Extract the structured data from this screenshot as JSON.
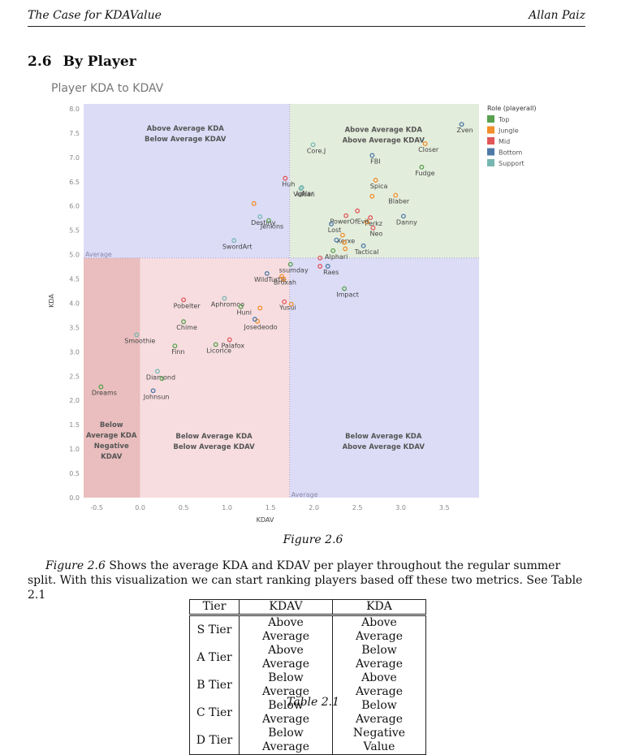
{
  "header": {
    "left": "The Case for KDAValue",
    "right": "Allan Paiz"
  },
  "section": {
    "number": "2.6",
    "title": "By Player"
  },
  "chart_title": "Player KDA to KDAV",
  "figure_caption": "Figure 2.6",
  "paragraph": {
    "ref": "Figure 2.6",
    "text": " Shows the average KDA and KDAV per player throughout the regular summer split. With this visualization we can start ranking players based off these two metrics. See Table 2.1"
  },
  "table": {
    "headers": [
      "Tier",
      "KDAV",
      "KDA"
    ],
    "rows": [
      [
        "S Tier",
        "Above Average",
        "Above Average"
      ],
      [
        "A Tier",
        "Above Average",
        "Below Average"
      ],
      [
        "B Tier",
        "Below Average",
        "Above Average"
      ],
      [
        "C Tier",
        "Below Average",
        "Below Average"
      ],
      [
        "D Tier",
        "Below Average",
        "Negative Value"
      ]
    ],
    "caption": "Table 2.1"
  },
  "chart_data": {
    "type": "scatter",
    "xlabel": "KDAV",
    "ylabel": "KDA",
    "xlim": [
      -0.65,
      3.9
    ],
    "ylim": [
      0.0,
      8.1
    ],
    "xticks": [
      -0.5,
      0.0,
      0.5,
      1.0,
      1.5,
      2.0,
      2.5,
      3.0,
      3.5
    ],
    "yticks": [
      0.0,
      0.5,
      1.0,
      1.5,
      2.0,
      2.5,
      3.0,
      3.5,
      4.0,
      4.5,
      5.0,
      5.5,
      6.0,
      6.5,
      7.0,
      7.5,
      8.0
    ],
    "reference_lines": {
      "x": 1.72,
      "y": 4.93,
      "x_label": "Average",
      "y_label": "Average"
    },
    "region_labels": [
      {
        "text": [
          "Above Average KDA",
          "Below Average KDAV"
        ],
        "x": 0.52,
        "y": 7.55,
        "color": "#555"
      },
      {
        "text": [
          "Above Average KDA",
          "Above Average KDAV"
        ],
        "x": 2.8,
        "y": 7.52,
        "color": "#555"
      },
      {
        "text": [
          "Below Average KDA",
          "Below Average KDAV"
        ],
        "x": 0.85,
        "y": 1.22,
        "color": "#555"
      },
      {
        "text": [
          "Below Average KDA",
          "Above Average KDAV"
        ],
        "x": 2.8,
        "y": 1.22,
        "color": "#555"
      },
      {
        "text": [
          "Below",
          "Average KDA",
          "Negative",
          "KDAV"
        ],
        "x": -0.33,
        "y": 1.45,
        "color": "#555"
      }
    ],
    "legend": {
      "title": "Role (playerall)",
      "position": "right",
      "items": [
        {
          "name": "Top",
          "color": "#59a14f"
        },
        {
          "name": "Jungle",
          "color": "#f28e2b"
        },
        {
          "name": "Mid",
          "color": "#e15759"
        },
        {
          "name": "Bottom",
          "color": "#4e79a7"
        },
        {
          "name": "Support",
          "color": "#76b7b2"
        }
      ]
    },
    "points": [
      {
        "label": "Zven",
        "x": 3.7,
        "y": 7.68,
        "role": "Bottom"
      },
      {
        "label": "Closer",
        "x": 3.28,
        "y": 7.28,
        "role": "Jungle"
      },
      {
        "label": "Core.J",
        "x": 1.99,
        "y": 7.26,
        "role": "Support"
      },
      {
        "label": "FBI",
        "x": 2.67,
        "y": 7.04,
        "role": "Bottom"
      },
      {
        "label": "Fudge",
        "x": 3.24,
        "y": 6.8,
        "role": "Top"
      },
      {
        "label": "Huh",
        "x": 1.67,
        "y": 6.57,
        "role": "Mid"
      },
      {
        "label": "IgNar",
        "x": 1.86,
        "y": 6.38,
        "role": "Support"
      },
      {
        "label": "Vulcan",
        "x": 1.85,
        "y": 6.36,
        "role": "Support"
      },
      {
        "label": "Spica",
        "x": 2.71,
        "y": 6.53,
        "role": "Jungle"
      },
      {
        "label": "",
        "x": 2.67,
        "y": 6.2,
        "role": "Jungle"
      },
      {
        "label": "Blaber",
        "x": 2.94,
        "y": 6.22,
        "role": "Jungle"
      },
      {
        "label": "",
        "x": 1.31,
        "y": 6.05,
        "role": "Jungle"
      },
      {
        "label": "Perkz",
        "x": 2.65,
        "y": 5.76,
        "role": "Mid"
      },
      {
        "label": "",
        "x": 2.61,
        "y": 5.67,
        "role": "Jungle"
      },
      {
        "label": "Destiny",
        "x": 1.38,
        "y": 5.78,
        "role": "Support"
      },
      {
        "label": "Jenkins",
        "x": 1.48,
        "y": 5.7,
        "role": "Top"
      },
      {
        "label": "PowerOfEvil",
        "x": 2.37,
        "y": 5.8,
        "role": "Mid"
      },
      {
        "label": "",
        "x": 2.5,
        "y": 5.9,
        "role": "Mid"
      },
      {
        "label": "Neo",
        "x": 2.68,
        "y": 5.55,
        "role": "Mid"
      },
      {
        "label": "Danny",
        "x": 3.03,
        "y": 5.79,
        "role": "Bottom"
      },
      {
        "label": "Lost",
        "x": 2.2,
        "y": 5.63,
        "role": "Bottom"
      },
      {
        "label": "Xerxe",
        "x": 2.33,
        "y": 5.4,
        "role": "Jungle"
      },
      {
        "label": "",
        "x": 2.26,
        "y": 5.3,
        "role": "Bottom"
      },
      {
        "label": "",
        "x": 2.35,
        "y": 5.25,
        "role": "Jungle"
      },
      {
        "label": "SwordArt",
        "x": 1.08,
        "y": 5.29,
        "role": "Support"
      },
      {
        "label": "Tactical",
        "x": 2.57,
        "y": 5.18,
        "role": "Bottom"
      },
      {
        "label": "Alphari",
        "x": 2.22,
        "y": 5.08,
        "role": "Top"
      },
      {
        "label": "",
        "x": 2.36,
        "y": 5.12,
        "role": "Jungle"
      },
      {
        "label": "",
        "x": 2.07,
        "y": 4.93,
        "role": "Mid"
      },
      {
        "label": "ssumday",
        "x": 1.73,
        "y": 4.8,
        "role": "Top"
      },
      {
        "label": "",
        "x": 2.07,
        "y": 4.76,
        "role": "Mid"
      },
      {
        "label": "Raes",
        "x": 2.16,
        "y": 4.76,
        "role": "Bottom"
      },
      {
        "label": "WildTurtle",
        "x": 1.46,
        "y": 4.61,
        "role": "Bottom"
      },
      {
        "label": "Broxah",
        "x": 1.63,
        "y": 4.55,
        "role": "Jungle"
      },
      {
        "label": "",
        "x": 1.65,
        "y": 4.5,
        "role": "Jungle"
      },
      {
        "label": "Impact",
        "x": 2.35,
        "y": 4.3,
        "role": "Top"
      },
      {
        "label": "Aphromoo",
        "x": 0.97,
        "y": 4.1,
        "role": "Support"
      },
      {
        "label": "Yusui",
        "x": 1.66,
        "y": 4.03,
        "role": "Mid"
      },
      {
        "label": "",
        "x": 1.74,
        "y": 3.98,
        "role": "Jungle"
      },
      {
        "label": "Pobelter",
        "x": 0.5,
        "y": 4.07,
        "role": "Mid"
      },
      {
        "label": "Huni",
        "x": 1.16,
        "y": 3.93,
        "role": "Top"
      },
      {
        "label": "",
        "x": 1.38,
        "y": 3.9,
        "role": "Jungle"
      },
      {
        "label": "Josedeodo",
        "x": 1.35,
        "y": 3.63,
        "role": "Jungle"
      },
      {
        "label": "",
        "x": 1.32,
        "y": 3.67,
        "role": "Bottom"
      },
      {
        "label": "Chime",
        "x": 0.5,
        "y": 3.62,
        "role": "Top"
      },
      {
        "label": "Smoothie",
        "x": -0.04,
        "y": 3.35,
        "role": "Support"
      },
      {
        "label": "Palafox",
        "x": 1.03,
        "y": 3.25,
        "role": "Mid"
      },
      {
        "label": "Licorice",
        "x": 0.87,
        "y": 3.15,
        "role": "Top"
      },
      {
        "label": "Finn",
        "x": 0.4,
        "y": 3.12,
        "role": "Top"
      },
      {
        "label": "Diamond",
        "x": 0.2,
        "y": 2.6,
        "role": "Support"
      },
      {
        "label": "",
        "x": 0.25,
        "y": 2.45,
        "role": "Top"
      },
      {
        "label": "Dreams",
        "x": -0.45,
        "y": 2.28,
        "role": "Top"
      },
      {
        "label": "Johnsun",
        "x": 0.15,
        "y": 2.2,
        "role": "Bottom"
      }
    ]
  }
}
